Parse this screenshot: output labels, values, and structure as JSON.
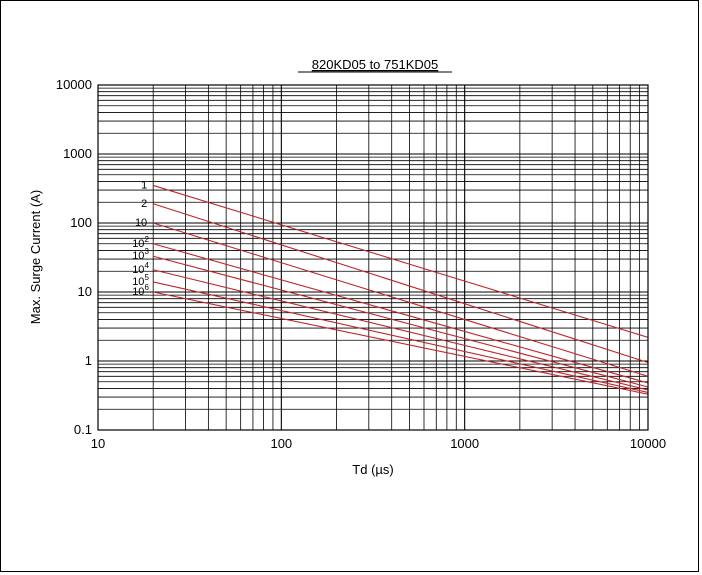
{
  "colors": {
    "curve": "#c0262b",
    "grid": "#000000",
    "frame": "#000000",
    "text": "#000000"
  },
  "chart_data": {
    "type": "line",
    "title": "820KD05 to 751KD05",
    "xlabel": "Td (µs)",
    "ylabel": "Max. Surge Current (A)",
    "xscale": "log",
    "yscale": "log",
    "xlim": [
      10,
      10000
    ],
    "ylim": [
      0.1,
      10000
    ],
    "grid": true,
    "xticks": [
      "10",
      "100",
      "1000",
      "10000"
    ],
    "yticks": [
      "0.1",
      "1",
      "10",
      "100",
      "1000",
      "10000"
    ],
    "series": [
      {
        "name": "1",
        "base": "1",
        "exp": "",
        "x": [
          20,
          10000
        ],
        "y": [
          350,
          2.2
        ]
      },
      {
        "name": "2",
        "base": "2",
        "exp": "",
        "x": [
          20,
          10000
        ],
        "y": [
          190,
          0.95
        ]
      },
      {
        "name": "10",
        "base": "10",
        "exp": "",
        "x": [
          20,
          10000
        ],
        "y": [
          100,
          0.6
        ]
      },
      {
        "name": "10^2",
        "base": "10",
        "exp": "2",
        "x": [
          20,
          10000
        ],
        "y": [
          50,
          0.48
        ]
      },
      {
        "name": "10^3",
        "base": "10",
        "exp": "3",
        "x": [
          20,
          10000
        ],
        "y": [
          33,
          0.42
        ]
      },
      {
        "name": "10^4",
        "base": "10",
        "exp": "4",
        "x": [
          20,
          10000
        ],
        "y": [
          21,
          0.38
        ]
      },
      {
        "name": "10^5",
        "base": "10",
        "exp": "5",
        "x": [
          20,
          10000
        ],
        "y": [
          14,
          0.35
        ]
      },
      {
        "name": "10^6",
        "base": "10",
        "exp": "6",
        "x": [
          20,
          10000
        ],
        "y": [
          10,
          0.33
        ]
      }
    ]
  }
}
